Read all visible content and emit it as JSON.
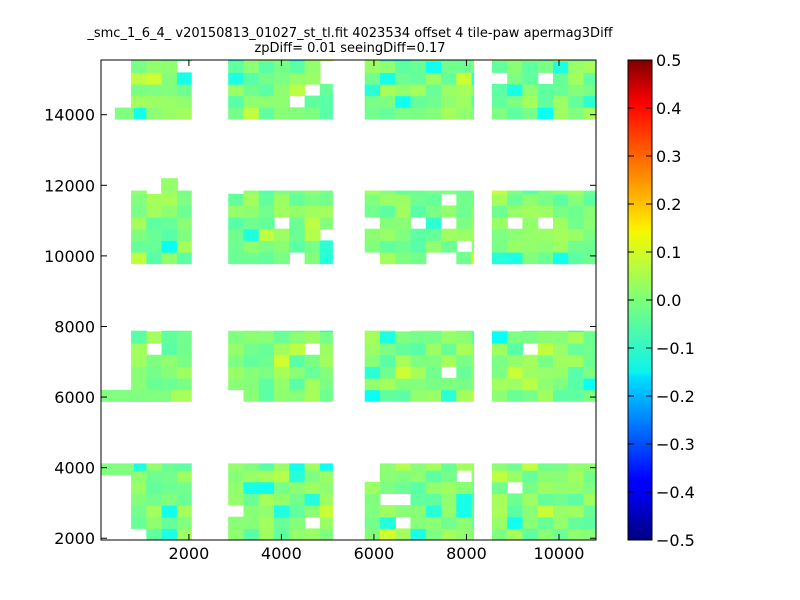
{
  "chart_data": {
    "type": "heatmap",
    "title": "_smc_1_6_4_ v20150813_01027_st_tl.fit 4023534 offset 4 tile-paw apermag3Diff",
    "subtitle": "zpDiff= 0.01 seeingDiff=0.17",
    "xlabel": "",
    "ylabel": "",
    "xlim": [
      100,
      10800
    ],
    "ylim": [
      1950,
      15550
    ],
    "x_ticks": [
      "2000",
      "4000",
      "6000",
      "8000",
      "10000"
    ],
    "y_ticks": [
      "2000",
      "4000",
      "6000",
      "8000",
      "10000",
      "12000",
      "14000"
    ],
    "cell_size": [
      330,
      330
    ],
    "colorbar": {
      "colormap": "jet",
      "range": [
        -0.5,
        0.5
      ],
      "ticks": [
        "0.5",
        "0.4",
        "0.3",
        "0.2",
        "0.1",
        "0.0",
        "−0.1",
        "−0.2",
        "−0.3",
        "−0.4",
        "−0.5"
      ]
    },
    "columns": [
      {
        "x": [
          750,
          2050
        ],
        "y_ranges": [
          [
            1950,
            4120
          ],
          [
            5880,
            7880
          ],
          [
            9780,
            11850
          ],
          [
            13880,
            15550
          ]
        ]
      },
      {
        "x": [
          2850,
          5100
        ],
        "y_ranges": [
          [
            1950,
            4120
          ],
          [
            5880,
            7880
          ],
          [
            9780,
            11850
          ],
          [
            13880,
            15550
          ]
        ]
      },
      {
        "x": [
          5800,
          8150
        ],
        "y_ranges": [
          [
            1950,
            4120
          ],
          [
            5880,
            7880
          ],
          [
            9780,
            11850
          ],
          [
            13880,
            15550
          ]
        ]
      },
      {
        "x": [
          8550,
          10800
        ],
        "y_ranges": [
          [
            1950,
            4120
          ],
          [
            5880,
            7880
          ],
          [
            9780,
            11850
          ],
          [
            13880,
            15550
          ]
        ]
      }
    ],
    "extra_tiles": [
      {
        "x": [
          100,
          1600
        ],
        "y": [
          5880,
          6200
        ],
        "value": 0.0
      },
      {
        "x": [
          1400,
          1750
        ],
        "y": [
          11850,
          12200
        ],
        "value": 0.02
      },
      {
        "x": [
          400,
          800
        ],
        "y": [
          13880,
          14200
        ],
        "value": 0.0
      },
      {
        "x": [
          100,
          800
        ],
        "y": [
          3800,
          4120
        ],
        "value": 0.0
      }
    ],
    "value_min": -0.12,
    "value_max": 0.08,
    "typical_value": 0.0
  }
}
